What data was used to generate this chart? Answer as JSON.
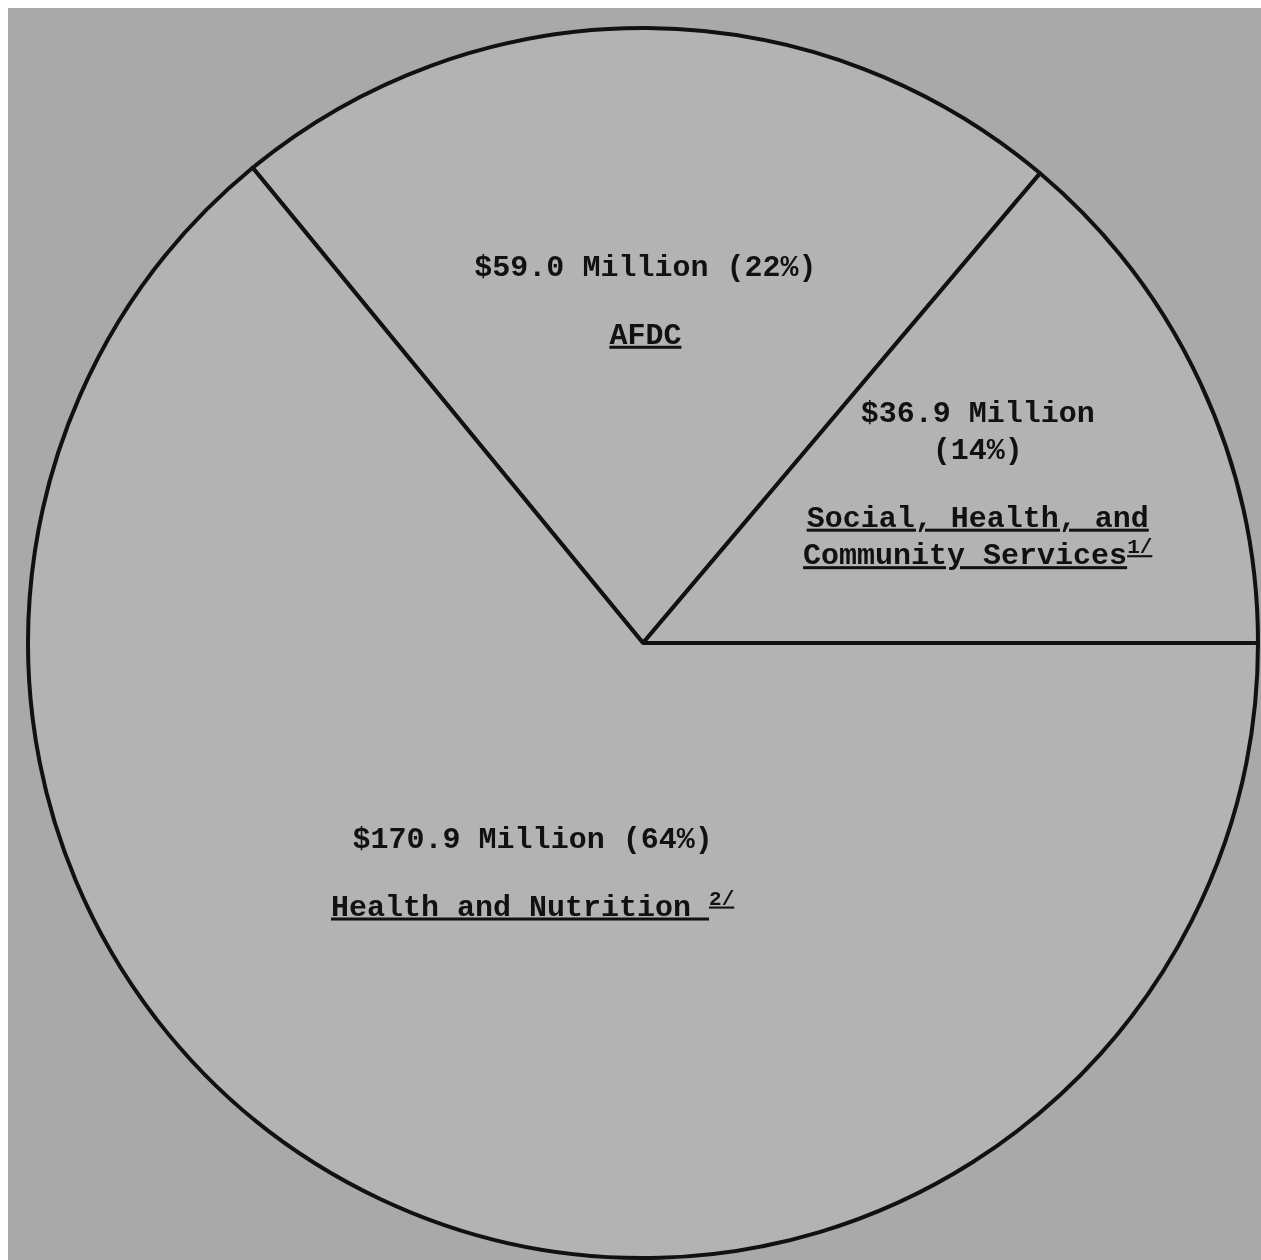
{
  "chart_data": {
    "type": "pie",
    "categories": [
      "AFDC",
      "Social, Health, and Community Services$^{1/}$",
      "Health and Nutrition $^{2/}$"
    ],
    "values": [
      59.0,
      36.9,
      170.9
    ],
    "value_labels": [
      "$59.0 Million (22%)",
      "$36.9 Million (14%)",
      "$170.9 Million (64%)"
    ],
    "colors": [
      "#b3b3b3",
      "#b3b3b3",
      "#b3b3b3"
    ]
  }
}
